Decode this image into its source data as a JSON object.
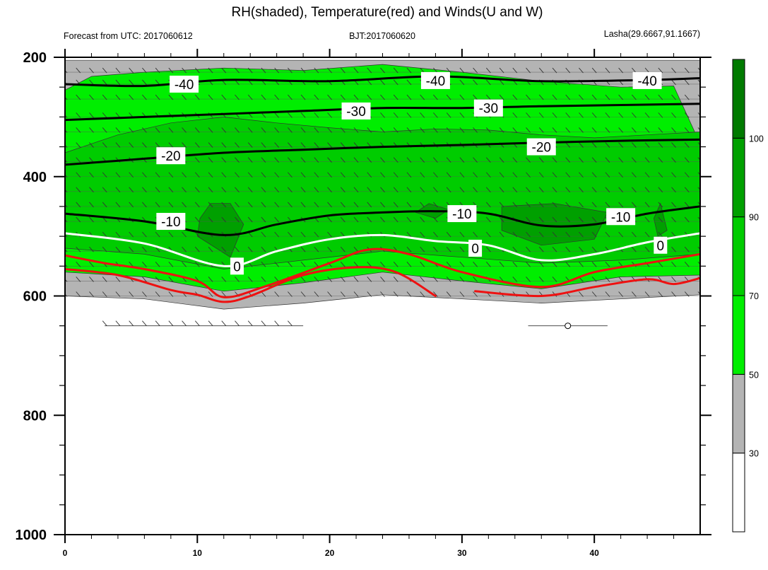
{
  "header": {
    "title": "RH(shaded), Temperature(red) and Winds(U and W)",
    "subtitle_left": "Forecast from UTC: 2017060612",
    "subtitle_center": "BJT:2017060620",
    "subtitle_right": "Lasha(29.6667,91.1667)"
  },
  "chart_data": {
    "type": "contour",
    "xlim": [
      0,
      48
    ],
    "ylim": [
      1000,
      200
    ],
    "y_reversed": true,
    "x_ticks": [
      0,
      10,
      20,
      30,
      40
    ],
    "x_tick_labels": [
      "0",
      "10",
      "20",
      "30",
      "40"
    ],
    "y_ticks": [
      200,
      400,
      600,
      800,
      1000
    ],
    "y_tick_labels": [
      "200",
      "400",
      "600",
      "800",
      "1000"
    ],
    "colorbar": {
      "levels": [
        30,
        50,
        70,
        90,
        100
      ],
      "level_labels": [
        "30",
        "50",
        "70",
        "90",
        "100"
      ],
      "colors": [
        "#ffffff",
        "#b4b4b4",
        "#00ee00",
        "#00cc00",
        "#00a000",
        "#007a00"
      ]
    },
    "rh_regions": [
      {
        "level": 50,
        "color": "#b4b4b4",
        "top": [
          [
            0,
            205
          ],
          [
            48,
            205
          ]
        ],
        "bottom": [
          [
            0,
            600
          ],
          [
            6,
            605
          ],
          [
            12,
            622
          ],
          [
            18,
            612
          ],
          [
            24,
            598
          ],
          [
            30,
            605
          ],
          [
            36,
            612
          ],
          [
            42,
            605
          ],
          [
            48,
            598
          ]
        ]
      },
      {
        "level": 70,
        "color": "#00ee00",
        "top": [
          [
            0,
            255
          ],
          [
            2,
            232
          ],
          [
            6,
            225
          ],
          [
            12,
            218
          ],
          [
            18,
            222
          ],
          [
            24,
            212
          ],
          [
            30,
            225
          ],
          [
            36,
            240
          ],
          [
            42,
            250
          ],
          [
            46,
            248
          ],
          [
            48,
            345
          ]
        ],
        "bottom": [
          [
            0,
            560
          ],
          [
            6,
            568
          ],
          [
            12,
            592
          ],
          [
            18,
            578
          ],
          [
            24,
            560
          ],
          [
            30,
            575
          ],
          [
            36,
            588
          ],
          [
            42,
            568
          ],
          [
            48,
            565
          ]
        ]
      },
      {
        "level": 90,
        "color": "#00cc00",
        "top": [
          [
            0,
            360
          ],
          [
            4,
            330
          ],
          [
            8,
            310
          ],
          [
            12,
            300
          ],
          [
            16,
            310
          ],
          [
            20,
            318
          ],
          [
            24,
            325
          ],
          [
            28,
            320
          ],
          [
            32,
            322
          ],
          [
            36,
            330
          ],
          [
            40,
            335
          ],
          [
            44,
            330
          ],
          [
            48,
            325
          ]
        ],
        "bottom": [
          [
            0,
            520
          ],
          [
            6,
            530
          ],
          [
            12,
            555
          ],
          [
            18,
            540
          ],
          [
            24,
            525
          ],
          [
            30,
            535
          ],
          [
            36,
            545
          ],
          [
            42,
            540
          ],
          [
            48,
            530
          ]
        ]
      },
      {
        "level": 100,
        "color": "#00a000",
        "patches": [
          [
            [
              10.2,
              470
            ],
            [
              11,
              445
            ],
            [
              12.5,
              445
            ],
            [
              13.5,
              480
            ],
            [
              12.5,
              535
            ],
            [
              10,
              500
            ]
          ],
          [
            [
              26.5,
              460
            ],
            [
              27.5,
              445
            ],
            [
              29,
              455
            ],
            [
              28,
              470
            ]
          ],
          [
            [
              33,
              450
            ],
            [
              37,
              445
            ],
            [
              41,
              460
            ],
            [
              40,
              505
            ],
            [
              36,
              515
            ],
            [
              33,
              490
            ]
          ],
          [
            [
              44.5,
              470
            ],
            [
              45,
              445
            ],
            [
              45.5,
              490
            ],
            [
              44.8,
              500
            ]
          ]
        ]
      }
    ],
    "temperature_contours": [
      {
        "label": "-40",
        "color": "#000000",
        "points": [
          [
            0,
            245
          ],
          [
            6,
            248
          ],
          [
            12,
            238
          ],
          [
            20,
            240
          ],
          [
            28,
            232
          ],
          [
            36,
            240
          ],
          [
            44,
            238
          ],
          [
            48,
            235
          ]
        ],
        "label_at": [
          [
            9,
            245
          ],
          [
            28,
            239
          ],
          [
            44,
            239
          ]
        ]
      },
      {
        "label": "-30",
        "color": "#000000",
        "points": [
          [
            0,
            305
          ],
          [
            6,
            300
          ],
          [
            12,
            295
          ],
          [
            18,
            290
          ],
          [
            24,
            285
          ],
          [
            30,
            285
          ],
          [
            36,
            282
          ],
          [
            42,
            280
          ],
          [
            48,
            278
          ]
        ],
        "label_at": [
          [
            22,
            290
          ],
          [
            32,
            285
          ]
        ]
      },
      {
        "label": "-20",
        "color": "#000000",
        "points": [
          [
            0,
            380
          ],
          [
            6,
            370
          ],
          [
            12,
            360
          ],
          [
            18,
            355
          ],
          [
            24,
            350
          ],
          [
            30,
            347
          ],
          [
            36,
            343
          ],
          [
            42,
            340
          ],
          [
            48,
            338
          ]
        ],
        "label_at": [
          [
            8,
            365
          ],
          [
            36,
            350
          ]
        ]
      },
      {
        "label": "-10",
        "color": "#000000",
        "points": [
          [
            0,
            462
          ],
          [
            6,
            475
          ],
          [
            12,
            498
          ],
          [
            16,
            480
          ],
          [
            20,
            465
          ],
          [
            24,
            460
          ],
          [
            28,
            458
          ],
          [
            32,
            462
          ],
          [
            36,
            482
          ],
          [
            40,
            480
          ],
          [
            44,
            462
          ],
          [
            48,
            450
          ]
        ],
        "label_at": [
          [
            8,
            475
          ],
          [
            30,
            462
          ],
          [
            42,
            467
          ]
        ]
      },
      {
        "label": "0",
        "color": "#ffffff",
        "points": [
          [
            0,
            495
          ],
          [
            6,
            512
          ],
          [
            12,
            550
          ],
          [
            16,
            525
          ],
          [
            20,
            505
          ],
          [
            24,
            498
          ],
          [
            28,
            508
          ],
          [
            32,
            515
          ],
          [
            36,
            540
          ],
          [
            40,
            530
          ],
          [
            44,
            510
          ],
          [
            48,
            495
          ]
        ],
        "label_at": [
          [
            13,
            550
          ],
          [
            31,
            520
          ],
          [
            45,
            515
          ]
        ]
      },
      {
        "label": "",
        "color": "#ee1111",
        "points": [
          [
            0,
            532
          ],
          [
            3,
            545
          ],
          [
            6,
            555
          ],
          [
            10,
            575
          ],
          [
            12,
            602
          ],
          [
            15,
            585
          ],
          [
            20,
            545
          ],
          [
            23,
            522
          ],
          [
            26,
            530
          ],
          [
            30,
            560
          ],
          [
            36,
            585
          ],
          [
            40,
            560
          ],
          [
            44,
            545
          ],
          [
            48,
            530
          ]
        ],
        "label_at": []
      },
      {
        "label": "",
        "color": "#ee1111",
        "points": [
          [
            0,
            555
          ],
          [
            4,
            565
          ],
          [
            8,
            590
          ],
          [
            10,
            598
          ],
          [
            12,
            610
          ],
          [
            14,
            600
          ],
          [
            18,
            565
          ],
          [
            22,
            552
          ],
          [
            25,
            560
          ],
          [
            28,
            600
          ]
        ],
        "label_at": []
      },
      {
        "label": "",
        "color": "#ee1111",
        "points": [
          [
            31,
            592
          ],
          [
            36,
            600
          ],
          [
            40,
            585
          ],
          [
            44,
            572
          ],
          [
            46,
            580
          ],
          [
            48,
            570
          ]
        ],
        "label_at": []
      }
    ],
    "wind_levels": [
      225,
      245,
      270,
      300,
      325,
      350,
      375,
      400,
      425,
      450,
      475,
      500,
      525,
      550,
      575,
      600
    ],
    "wind_lower_level": 650,
    "calm_marker": [
      38,
      650
    ]
  }
}
